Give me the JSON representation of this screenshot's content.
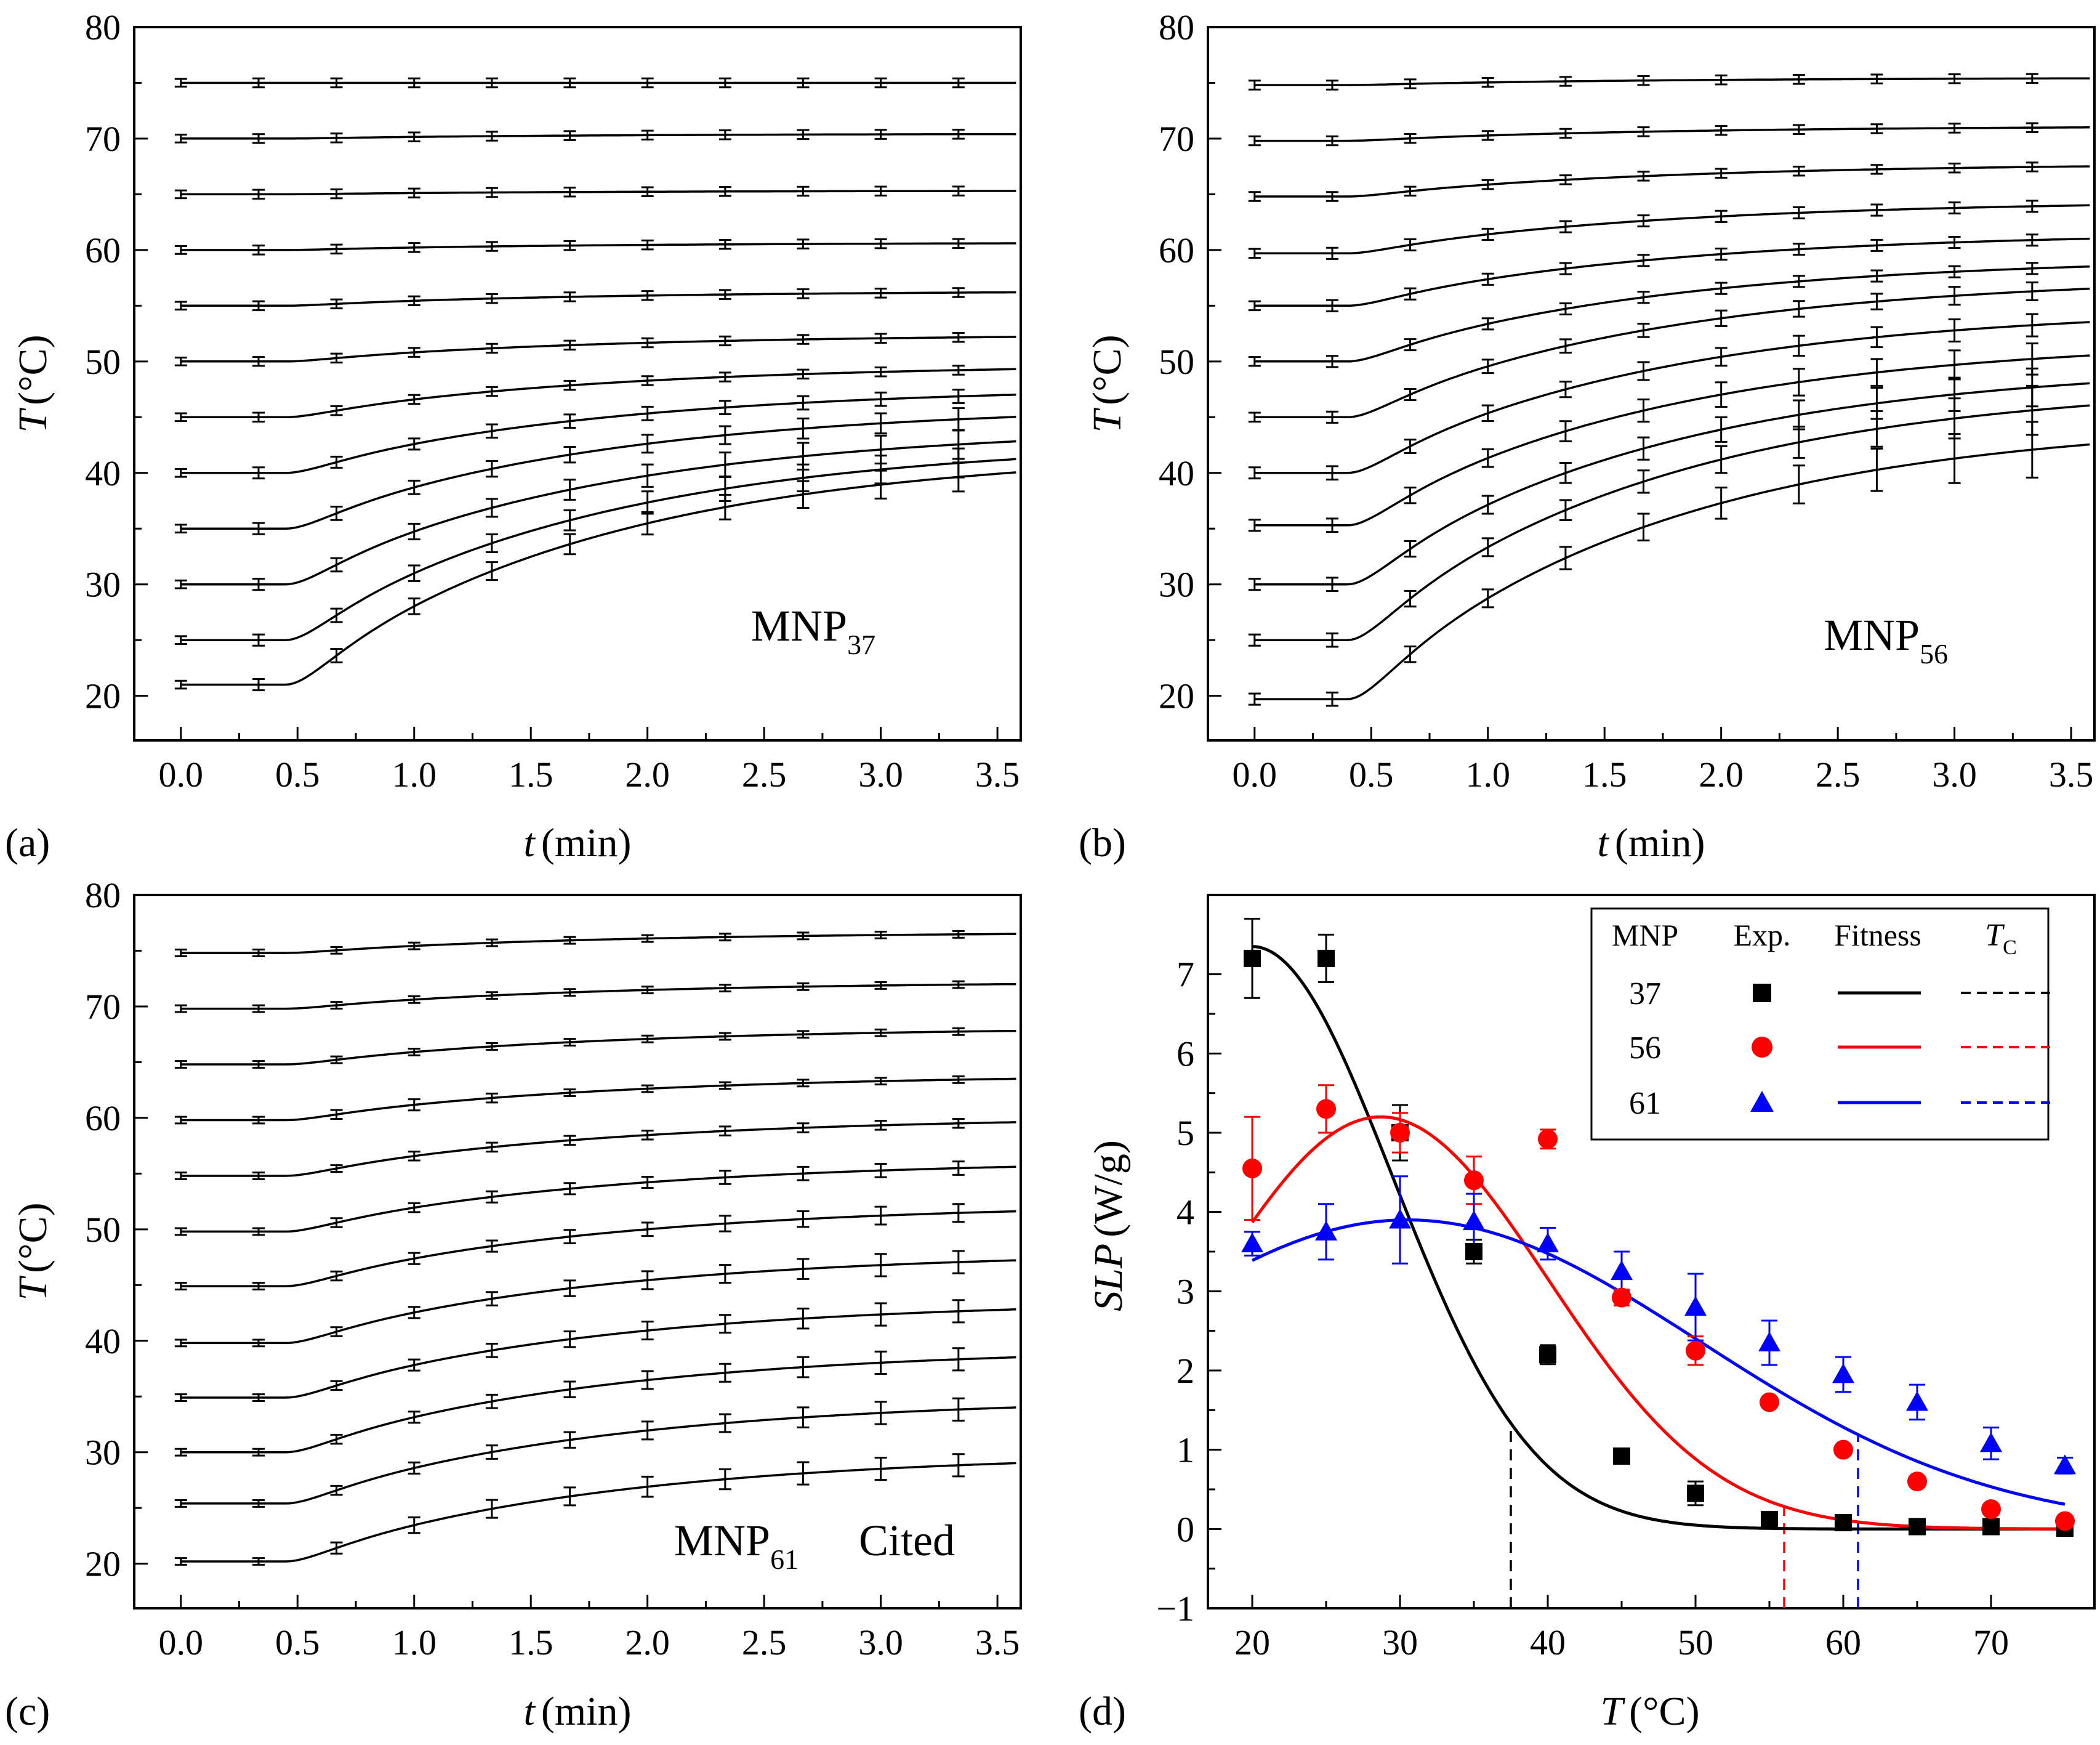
{
  "chart_data": [
    {
      "panel": "a",
      "panel_label": "(a)",
      "type": "line",
      "xlabel_var": "t",
      "xlabel_unit": "(min)",
      "ylabel_var": "T",
      "ylabel_unit": "(°C)",
      "xlim": [
        -0.2,
        3.6
      ],
      "ylim": [
        16,
        80
      ],
      "xticks": [
        0.0,
        0.5,
        1.0,
        1.5,
        2.0,
        2.5,
        3.0,
        3.5
      ],
      "xtick_labels": [
        "0.0",
        "0.5",
        "1.0",
        "1.5",
        "2.0",
        "2.5",
        "3.0",
        "3.5"
      ],
      "yticks": [
        20,
        30,
        40,
        50,
        60,
        70,
        80
      ],
      "ytick_labels": [
        "20",
        "30",
        "40",
        "50",
        "60",
        "70",
        "80"
      ],
      "annotation_main": "MNP",
      "annotation_sub": "37",
      "annotation_extra": "",
      "marker_x": [
        0,
        0.333,
        0.667,
        1.0,
        1.333,
        1.667,
        2.0,
        2.333,
        2.667,
        3.0,
        3.333
      ],
      "series": [
        {
          "start": 21,
          "end": 40.0,
          "delay": 0.45,
          "err": [
            0.35,
            0.5,
            0.6,
            0.7,
            0.8,
            0.9,
            1.0,
            1.1,
            1.2,
            1.25,
            1.3
          ]
        },
        {
          "start": 25,
          "end": 41.2,
          "delay": 0.45,
          "err": [
            0.35,
            0.5,
            0.6,
            0.7,
            0.8,
            0.9,
            1.0,
            1.1,
            1.2,
            1.25,
            1.3
          ]
        },
        {
          "start": 30,
          "end": 42.8,
          "delay": 0.45,
          "err": [
            0.35,
            0.5,
            0.6,
            0.7,
            0.8,
            0.9,
            1.0,
            1.1,
            1.2,
            1.25,
            1.3
          ]
        },
        {
          "start": 35,
          "end": 45.0,
          "delay": 0.45,
          "err": [
            0.35,
            0.5,
            0.6,
            0.6,
            0.7,
            0.7,
            0.8,
            0.8,
            0.9,
            0.9,
            1.0
          ]
        },
        {
          "start": 40,
          "end": 47.0,
          "delay": 0.45,
          "err": [
            0.35,
            0.5,
            0.5,
            0.5,
            0.6,
            0.6,
            0.6,
            0.6,
            0.6,
            0.6,
            0.6
          ]
        },
        {
          "start": 45,
          "end": 49.3,
          "delay": 0.45,
          "err": [
            0.35,
            0.4,
            0.4,
            0.4,
            0.4,
            0.4,
            0.4,
            0.4,
            0.4,
            0.4,
            0.4
          ]
        },
        {
          "start": 50,
          "end": 52.2,
          "delay": 0.45,
          "err": [
            0.35,
            0.4,
            0.4,
            0.4,
            0.4,
            0.4,
            0.4,
            0.4,
            0.4,
            0.4,
            0.4
          ]
        },
        {
          "start": 55,
          "end": 56.2,
          "delay": 0.45,
          "err": [
            0.35,
            0.4,
            0.4,
            0.4,
            0.4,
            0.4,
            0.4,
            0.4,
            0.4,
            0.4,
            0.4
          ]
        },
        {
          "start": 60,
          "end": 60.6,
          "delay": 0.45,
          "err": [
            0.35,
            0.4,
            0.4,
            0.4,
            0.4,
            0.4,
            0.4,
            0.4,
            0.4,
            0.4,
            0.4
          ]
        },
        {
          "start": 65,
          "end": 65.3,
          "delay": 0.45,
          "err": [
            0.35,
            0.4,
            0.4,
            0.4,
            0.4,
            0.4,
            0.4,
            0.4,
            0.4,
            0.4,
            0.4
          ]
        },
        {
          "start": 70,
          "end": 70.4,
          "delay": 0.45,
          "err": [
            0.35,
            0.4,
            0.4,
            0.4,
            0.4,
            0.4,
            0.4,
            0.4,
            0.4,
            0.4,
            0.4
          ]
        },
        {
          "start": 75,
          "end": 75.0,
          "delay": 0.45,
          "err": [
            0.35,
            0.4,
            0.4,
            0.4,
            0.4,
            0.4,
            0.4,
            0.4,
            0.4,
            0.4,
            0.4
          ]
        }
      ]
    },
    {
      "panel": "b",
      "panel_label": "(b)",
      "type": "line",
      "xlabel_var": "t",
      "xlabel_unit": "(min)",
      "ylabel_var": "T",
      "ylabel_unit": "(°C)",
      "xlim": [
        -0.2,
        3.6
      ],
      "ylim": [
        16,
        80
      ],
      "xticks": [
        0.0,
        0.5,
        1.0,
        1.5,
        2.0,
        2.5,
        3.0,
        3.5
      ],
      "xtick_labels": [
        "0.0",
        "0.5",
        "1.0",
        "1.5",
        "2.0",
        "2.5",
        "3.0",
        "3.5"
      ],
      "yticks": [
        20,
        30,
        40,
        50,
        60,
        70,
        80
      ],
      "ytick_labels": [
        "20",
        "30",
        "40",
        "50",
        "60",
        "70",
        "80"
      ],
      "annotation_main": "MNP",
      "annotation_sub": "56",
      "annotation_extra": "",
      "marker_x": [
        0,
        0.333,
        0.667,
        1.0,
        1.333,
        1.667,
        2.0,
        2.333,
        2.667,
        3.0,
        3.333
      ],
      "series": [
        {
          "start": 19.7,
          "end": 42.5,
          "delay": 0.4,
          "err": [
            0.5,
            0.6,
            0.7,
            0.8,
            1.0,
            1.2,
            1.4,
            1.7,
            1.9,
            2.2,
            2.5
          ]
        },
        {
          "start": 25,
          "end": 46.0,
          "delay": 0.4,
          "err": [
            0.5,
            0.6,
            0.7,
            0.8,
            0.9,
            1.0,
            1.2,
            1.4,
            1.6,
            1.8,
            2.2
          ]
        },
        {
          "start": 30,
          "end": 48.0,
          "delay": 0.4,
          "err": [
            0.5,
            0.6,
            0.7,
            0.8,
            0.9,
            1.0,
            1.1,
            1.3,
            1.4,
            1.5,
            1.7
          ]
        },
        {
          "start": 35.3,
          "end": 50.5,
          "delay": 0.4,
          "err": [
            0.5,
            0.6,
            0.7,
            0.8,
            0.9,
            1.0,
            1.1,
            1.2,
            1.2,
            1.3,
            1.4
          ]
        },
        {
          "start": 40,
          "end": 53.5,
          "delay": 0.4,
          "err": [
            0.5,
            0.6,
            0.6,
            0.7,
            0.7,
            0.8,
            0.8,
            0.9,
            0.9,
            1.0,
            1.0
          ]
        },
        {
          "start": 45,
          "end": 56.5,
          "delay": 0.4,
          "err": [
            0.4,
            0.5,
            0.5,
            0.6,
            0.6,
            0.6,
            0.7,
            0.7,
            0.7,
            0.8,
            0.8
          ]
        },
        {
          "start": 50,
          "end": 58.5,
          "delay": 0.4,
          "err": [
            0.4,
            0.5,
            0.5,
            0.5,
            0.5,
            0.5,
            0.5,
            0.5,
            0.5,
            0.5,
            0.5
          ]
        },
        {
          "start": 55,
          "end": 61.0,
          "delay": 0.4,
          "err": [
            0.4,
            0.5,
            0.5,
            0.5,
            0.5,
            0.5,
            0.5,
            0.5,
            0.5,
            0.5,
            0.5
          ]
        },
        {
          "start": 59.7,
          "end": 64.0,
          "delay": 0.4,
          "err": [
            0.4,
            0.5,
            0.5,
            0.5,
            0.5,
            0.5,
            0.5,
            0.5,
            0.5,
            0.5,
            0.5
          ]
        },
        {
          "start": 64.8,
          "end": 67.5,
          "delay": 0.4,
          "err": [
            0.4,
            0.4,
            0.4,
            0.4,
            0.4,
            0.4,
            0.4,
            0.4,
            0.4,
            0.4,
            0.4
          ]
        },
        {
          "start": 69.8,
          "end": 71.0,
          "delay": 0.4,
          "err": [
            0.4,
            0.4,
            0.4,
            0.4,
            0.4,
            0.4,
            0.4,
            0.4,
            0.4,
            0.4,
            0.4
          ]
        },
        {
          "start": 74.8,
          "end": 75.4,
          "delay": 0.4,
          "err": [
            0.4,
            0.4,
            0.4,
            0.4,
            0.4,
            0.4,
            0.4,
            0.4,
            0.4,
            0.4,
            0.4
          ]
        }
      ]
    },
    {
      "panel": "c",
      "panel_label": "(c)",
      "type": "line",
      "xlabel_var": "t",
      "xlabel_unit": "(min)",
      "ylabel_var": "T",
      "ylabel_unit": "(°C)",
      "xlim": [
        -0.2,
        3.6
      ],
      "ylim": [
        16,
        80
      ],
      "xticks": [
        0.0,
        0.5,
        1.0,
        1.5,
        2.0,
        2.5,
        3.0,
        3.5
      ],
      "xtick_labels": [
        "0.0",
        "0.5",
        "1.0",
        "1.5",
        "2.0",
        "2.5",
        "3.0",
        "3.5"
      ],
      "yticks": [
        20,
        30,
        40,
        50,
        60,
        70,
        80
      ],
      "ytick_labels": [
        "20",
        "30",
        "40",
        "50",
        "60",
        "70",
        "80"
      ],
      "annotation_main": "MNP",
      "annotation_sub": "61",
      "annotation_extra": "Cited",
      "marker_x": [
        0,
        0.333,
        0.667,
        1.0,
        1.333,
        1.667,
        2.0,
        2.333,
        2.667,
        3.0,
        3.333
      ],
      "series": [
        {
          "start": 20.2,
          "end": 29.0,
          "delay": 0.45,
          "err": [
            0.3,
            0.3,
            0.5,
            0.7,
            0.8,
            0.8,
            0.9,
            0.9,
            1.0,
            1.0,
            1.0
          ]
        },
        {
          "start": 25.4,
          "end": 34.0,
          "delay": 0.45,
          "err": [
            0.3,
            0.3,
            0.4,
            0.5,
            0.6,
            0.7,
            0.8,
            0.8,
            0.9,
            1.0,
            1.0
          ]
        },
        {
          "start": 30.0,
          "end": 38.5,
          "delay": 0.45,
          "err": [
            0.3,
            0.3,
            0.4,
            0.5,
            0.6,
            0.7,
            0.8,
            0.8,
            0.9,
            1.0,
            1.0
          ]
        },
        {
          "start": 34.9,
          "end": 42.8,
          "delay": 0.45,
          "err": [
            0.3,
            0.3,
            0.4,
            0.5,
            0.6,
            0.7,
            0.8,
            0.8,
            0.9,
            1.0,
            1.0
          ]
        },
        {
          "start": 39.8,
          "end": 47.2,
          "delay": 0.45,
          "err": [
            0.3,
            0.3,
            0.4,
            0.5,
            0.6,
            0.7,
            0.8,
            0.8,
            0.9,
            1.0,
            1.0
          ]
        },
        {
          "start": 44.9,
          "end": 51.6,
          "delay": 0.45,
          "err": [
            0.3,
            0.3,
            0.4,
            0.5,
            0.5,
            0.6,
            0.6,
            0.7,
            0.7,
            0.8,
            0.8
          ]
        },
        {
          "start": 49.8,
          "end": 55.6,
          "delay": 0.45,
          "err": [
            0.3,
            0.3,
            0.4,
            0.4,
            0.5,
            0.5,
            0.5,
            0.6,
            0.6,
            0.6,
            0.6
          ]
        },
        {
          "start": 54.8,
          "end": 59.6,
          "delay": 0.45,
          "err": [
            0.3,
            0.3,
            0.3,
            0.4,
            0.4,
            0.4,
            0.4,
            0.4,
            0.4,
            0.4,
            0.4
          ]
        },
        {
          "start": 59.8,
          "end": 63.5,
          "delay": 0.45,
          "err": [
            0.3,
            0.3,
            0.4,
            0.5,
            0.4,
            0.3,
            0.3,
            0.3,
            0.3,
            0.3,
            0.3
          ]
        },
        {
          "start": 64.8,
          "end": 67.8,
          "delay": 0.45,
          "err": [
            0.3,
            0.3,
            0.3,
            0.3,
            0.3,
            0.3,
            0.3,
            0.3,
            0.3,
            0.3,
            0.3
          ]
        },
        {
          "start": 69.8,
          "end": 72.0,
          "delay": 0.45,
          "err": [
            0.3,
            0.3,
            0.3,
            0.3,
            0.3,
            0.3,
            0.3,
            0.3,
            0.3,
            0.3,
            0.3
          ]
        },
        {
          "start": 74.8,
          "end": 76.5,
          "delay": 0.45,
          "err": [
            0.3,
            0.3,
            0.3,
            0.3,
            0.3,
            0.3,
            0.3,
            0.3,
            0.3,
            0.3,
            0.3
          ]
        }
      ]
    },
    {
      "panel": "d",
      "panel_label": "(d)",
      "type": "scatter",
      "xlabel_var": "T",
      "xlabel_unit": "(°C)",
      "ylabel_var": "SLP",
      "ylabel_unit": "(W/g)",
      "xlim": [
        17,
        77
      ],
      "ylim": [
        -1,
        8
      ],
      "xticks": [
        20,
        30,
        40,
        50,
        60,
        70
      ],
      "xtick_labels": [
        "20",
        "30",
        "40",
        "50",
        "60",
        "70"
      ],
      "yticks": [
        -1,
        0,
        1,
        2,
        3,
        4,
        5,
        6,
        7
      ],
      "ytick_labels": [
        "−1",
        "0",
        "1",
        "2",
        "3",
        "4",
        "5",
        "6",
        "7"
      ],
      "legend": {
        "position": "top-right",
        "headers": [
          "MNP",
          "Exp.",
          "Fitness",
          "T",
          "C"
        ],
        "rows": [
          "37",
          "56",
          "61"
        ]
      },
      "series": [
        {
          "name": "37",
          "color": "#000000",
          "marker": "square",
          "x": [
            20,
            25,
            30,
            35,
            40,
            45,
            50,
            55,
            60,
            65,
            70,
            75
          ],
          "y": [
            7.2,
            7.2,
            5.0,
            3.5,
            2.2,
            0.92,
            0.45,
            0.12,
            0.08,
            0.03,
            0.03,
            0.01
          ],
          "err": [
            0.5,
            0.3,
            0.35,
            0.15,
            0.12,
            0.08,
            0.15,
            0.05,
            0.05,
            0.03,
            0.03,
            0.02
          ],
          "fit": {
            "A": 7.35,
            "mu": 20,
            "sigma": 13.4
          },
          "tc": 37.5
        },
        {
          "name": "56",
          "color": "#ff0000",
          "marker": "circle",
          "x": [
            20,
            25,
            30,
            35,
            40,
            45,
            50,
            55,
            60,
            65,
            70,
            75
          ],
          "y": [
            4.55,
            5.3,
            5.0,
            4.4,
            4.92,
            2.92,
            2.25,
            1.6,
            1.0,
            0.6,
            0.25,
            0.1
          ],
          "err": [
            0.65,
            0.3,
            0.25,
            0.3,
            0.12,
            0.1,
            0.18,
            0.06,
            0.05,
            0.05,
            0.05,
            0.03
          ],
          "fit": {
            "A": 5.2,
            "mu": 28.7,
            "sigma": 16.0
          },
          "tc": 56
        },
        {
          "name": "61",
          "color": "#0000ff",
          "marker": "triangle",
          "x": [
            20,
            25,
            30,
            35,
            40,
            45,
            50,
            55,
            60,
            65,
            70,
            75
          ],
          "y": [
            3.6,
            3.75,
            3.9,
            3.88,
            3.6,
            3.25,
            2.8,
            2.35,
            1.95,
            1.6,
            1.08,
            0.8
          ],
          "err": [
            0.15,
            0.35,
            0.55,
            0.35,
            0.2,
            0.25,
            0.42,
            0.28,
            0.22,
            0.22,
            0.2,
            0.1
          ],
          "fit": {
            "A": 3.9,
            "mu": 30.5,
            "sigma": 28.0
          },
          "tc": 61
        }
      ]
    }
  ]
}
